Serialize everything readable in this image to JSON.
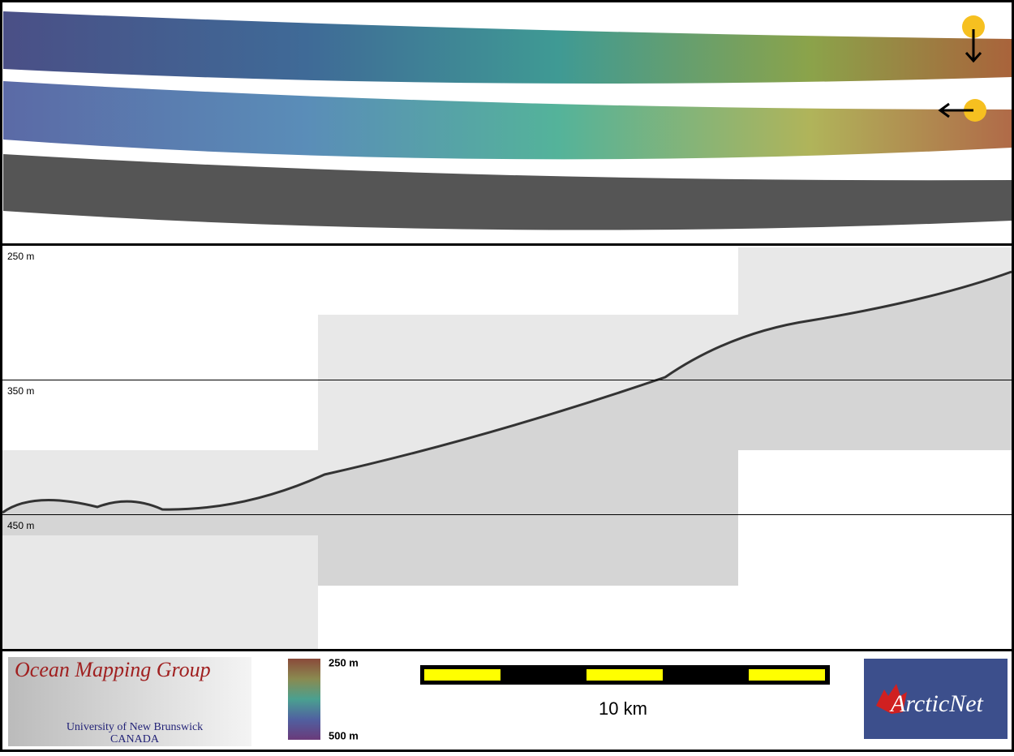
{
  "profile": {
    "depth_labels": [
      "250 m",
      "350 m",
      "450 m"
    ]
  },
  "logo_omg": {
    "title": "Ocean Mapping Group",
    "line1": "University of New Brunswick",
    "line2": "CANADA"
  },
  "colorbar": {
    "top": "250 m",
    "bottom": "500 m"
  },
  "scalebar": {
    "label": "10 km"
  },
  "logo_arcticnet": {
    "text": "ArcticNet"
  }
}
